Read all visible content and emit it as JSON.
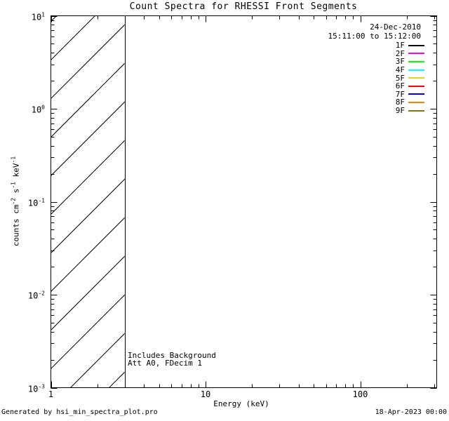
{
  "title": "Count Spectra for RHESSI Front Segments",
  "observation": {
    "date": "24-Dec-2010",
    "interval": "15:11:00 to 15:12:00"
  },
  "legend": {
    "items": [
      {
        "label": "1F",
        "color": "#000000"
      },
      {
        "label": "2F",
        "color": "#FF00FF"
      },
      {
        "label": "3F",
        "color": "#00FF00"
      },
      {
        "label": "4F",
        "color": "#00FFFF"
      },
      {
        "label": "5F",
        "color": "#DCDC00"
      },
      {
        "label": "6F",
        "color": "#FF0000"
      },
      {
        "label": "7F",
        "color": "#0000FF"
      },
      {
        "label": "8F",
        "color": "#FF8000"
      },
      {
        "label": "9F",
        "color": "#808000"
      }
    ]
  },
  "plot": {
    "xlabel": "Energy (keV)",
    "ylabel_parts": [
      {
        "text": "counts cm"
      },
      {
        "sup": "-2"
      },
      {
        "text": " s"
      },
      {
        "sup": "-1"
      },
      {
        "text": " keV"
      },
      {
        "sup": "-1"
      }
    ],
    "x_ticks": [
      {
        "label": "1",
        "value": 1
      },
      {
        "label": "10",
        "value": 10
      },
      {
        "label": "100",
        "value": 100
      }
    ],
    "y_ticks": [
      {
        "base": "10",
        "exp": "1",
        "value": 10
      },
      {
        "base": "10",
        "exp": "0",
        "value": 1
      },
      {
        "base": "10",
        "exp": "-1",
        "value": 0.1
      },
      {
        "base": "10",
        "exp": "-2",
        "value": 0.01
      },
      {
        "base": "10",
        "exp": "-3",
        "value": 0.001
      }
    ],
    "annotation": [
      "Includes Background",
      "Att A0, FDecim 1"
    ]
  },
  "footer": {
    "generated_by": "Generated by hsi_min_spectra_plot.pro",
    "timestamp": "18-Apr-2023 00:00"
  },
  "chart_data": {
    "type": "line",
    "title": "Count Spectra for RHESSI Front Segments",
    "xlabel": "Energy (keV)",
    "ylabel": "counts cm^-2 s^-1 keV^-1",
    "x_scale": "log",
    "y_scale": "log",
    "x_range": [
      1,
      312
    ],
    "y_range": [
      0.001,
      10
    ],
    "x_major_ticks": [
      1,
      10,
      100
    ],
    "y_major_ticks": [
      0.001,
      0.01,
      0.1,
      1,
      10
    ],
    "grid": false,
    "legend_position": "top-right",
    "hatched_region": {
      "x_from": 1,
      "x_to": 3
    },
    "series": [
      {
        "name": "1F",
        "color": "#000000",
        "points": []
      },
      {
        "name": "2F",
        "color": "#FF00FF",
        "points": []
      },
      {
        "name": "3F",
        "color": "#00FF00",
        "points": []
      },
      {
        "name": "4F",
        "color": "#00FFFF",
        "points": []
      },
      {
        "name": "5F",
        "color": "#DCDC00",
        "points": []
      },
      {
        "name": "6F",
        "color": "#FF0000",
        "points": []
      },
      {
        "name": "7F",
        "color": "#0000FF",
        "points": []
      },
      {
        "name": "8F",
        "color": "#FF8000",
        "points": []
      },
      {
        "name": "9F",
        "color": "#808000",
        "points": []
      }
    ]
  }
}
